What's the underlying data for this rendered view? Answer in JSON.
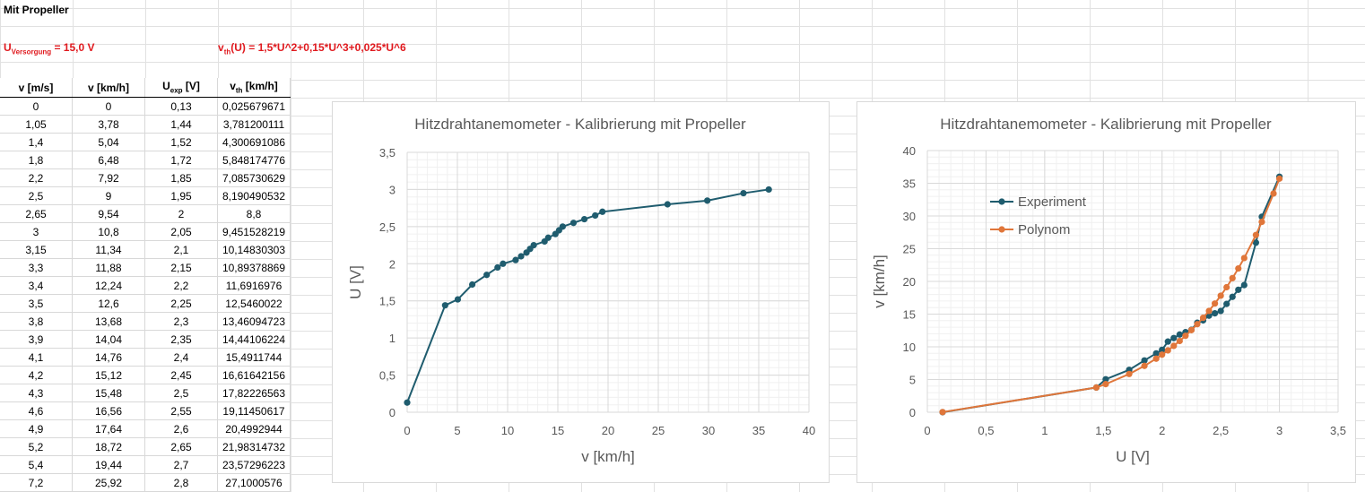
{
  "sheet": {
    "title": "Mit Propeller",
    "supply": {
      "sym": "U",
      "sub": "Versorgung",
      "rest": " = 15,0 V"
    },
    "formula": {
      "sym": "v",
      "sub": "th",
      "rest": "(U) = 1,5*U^2+0,15*U^3+0,025*U^6"
    },
    "headers": [
      {
        "main": "v [m/s]",
        "sub": "",
        "rest": ""
      },
      {
        "main": "v [km/h]",
        "sub": "",
        "rest": ""
      },
      {
        "main": "U",
        "sub": "exp",
        "rest": " [V]"
      },
      {
        "main": "v",
        "sub": "th",
        "rest": " [km/h]"
      }
    ],
    "rows": [
      [
        "0",
        "0",
        "0,13",
        "0,025679671"
      ],
      [
        "1,05",
        "3,78",
        "1,44",
        "3,781200111"
      ],
      [
        "1,4",
        "5,04",
        "1,52",
        "4,300691086"
      ],
      [
        "1,8",
        "6,48",
        "1,72",
        "5,848174776"
      ],
      [
        "2,2",
        "7,92",
        "1,85",
        "7,085730629"
      ],
      [
        "2,5",
        "9",
        "1,95",
        "8,190490532"
      ],
      [
        "2,65",
        "9,54",
        "2",
        "8,8"
      ],
      [
        "3",
        "10,8",
        "2,05",
        "9,451528219"
      ],
      [
        "3,15",
        "11,34",
        "2,1",
        "10,14830303"
      ],
      [
        "3,3",
        "11,88",
        "2,15",
        "10,89378869"
      ],
      [
        "3,4",
        "12,24",
        "2,2",
        "11,6916976"
      ],
      [
        "3,5",
        "12,6",
        "2,25",
        "12,5460022"
      ],
      [
        "3,8",
        "13,68",
        "2,3",
        "13,46094723"
      ],
      [
        "3,9",
        "14,04",
        "2,35",
        "14,44106224"
      ],
      [
        "4,1",
        "14,76",
        "2,4",
        "15,4911744"
      ],
      [
        "4,2",
        "15,12",
        "2,45",
        "16,61642156"
      ],
      [
        "4,3",
        "15,48",
        "2,5",
        "17,82226563"
      ],
      [
        "4,6",
        "16,56",
        "2,55",
        "19,11450617"
      ],
      [
        "4,9",
        "17,64",
        "2,6",
        "20,4992944"
      ],
      [
        "5,2",
        "18,72",
        "2,65",
        "21,98314732"
      ],
      [
        "5,4",
        "19,44",
        "2,7",
        "23,57296223"
      ],
      [
        "7,2",
        "25,92",
        "2,8",
        "27,1000576"
      ]
    ]
  },
  "chart_data": [
    {
      "type": "line",
      "title": "Hitzdrahtanemometer - Kalibrierung mit Propeller",
      "xlabel": "v [km/h]",
      "ylabel": "U [V]",
      "xlim": [
        0,
        40
      ],
      "ylim": [
        0,
        3.5
      ],
      "xticks": [
        "0",
        "5",
        "10",
        "15",
        "20",
        "25",
        "30",
        "35",
        "40"
      ],
      "yticks": [
        "0",
        "0,5",
        "1",
        "1,5",
        "2",
        "2,5",
        "3",
        "3,5"
      ],
      "grid": true,
      "series": [
        {
          "color": "#1f5c6e",
          "x": [
            0,
            3.78,
            5.04,
            6.48,
            7.92,
            9,
            9.54,
            10.8,
            11.34,
            11.88,
            12.24,
            12.6,
            13.68,
            14.04,
            14.76,
            15.12,
            15.48,
            16.56,
            17.64,
            18.72,
            19.44,
            25.92,
            29.88,
            33.48,
            36
          ],
          "y": [
            0.13,
            1.44,
            1.52,
            1.72,
            1.85,
            1.95,
            2,
            2.05,
            2.1,
            2.15,
            2.2,
            2.25,
            2.3,
            2.35,
            2.4,
            2.45,
            2.5,
            2.55,
            2.6,
            2.65,
            2.7,
            2.8,
            2.85,
            2.95,
            3
          ]
        }
      ]
    },
    {
      "type": "line",
      "title": "Hitzdrahtanemometer - Kalibrierung mit Propeller",
      "xlabel": "U [V]",
      "ylabel": "v [km/h]",
      "xlim": [
        0,
        3.5
      ],
      "ylim": [
        0,
        40
      ],
      "xticks": [
        "0",
        "0,5",
        "1",
        "1,5",
        "2",
        "2,5",
        "3",
        "3,5"
      ],
      "yticks": [
        "0",
        "5",
        "10",
        "15",
        "20",
        "25",
        "30",
        "35",
        "40"
      ],
      "grid": true,
      "legend": "left",
      "series": [
        {
          "name": "Experiment",
          "color": "#1f5c6e",
          "x": [
            0.13,
            1.44,
            1.52,
            1.72,
            1.85,
            1.95,
            2,
            2.05,
            2.1,
            2.15,
            2.2,
            2.25,
            2.3,
            2.35,
            2.4,
            2.45,
            2.5,
            2.55,
            2.6,
            2.65,
            2.7,
            2.8,
            2.85,
            3
          ],
          "y": [
            0,
            3.78,
            5.04,
            6.48,
            7.92,
            9,
            9.54,
            10.8,
            11.34,
            11.88,
            12.24,
            12.6,
            13.68,
            14.04,
            14.76,
            15.12,
            15.48,
            16.56,
            17.64,
            18.72,
            19.44,
            25.92,
            29.88,
            36
          ]
        },
        {
          "name": "Polynom",
          "color": "#e0763a",
          "x": [
            0.13,
            1.44,
            1.52,
            1.72,
            1.85,
            1.95,
            2,
            2.05,
            2.1,
            2.15,
            2.2,
            2.25,
            2.3,
            2.35,
            2.4,
            2.45,
            2.5,
            2.55,
            2.6,
            2.65,
            2.7,
            2.8,
            2.85,
            2.95,
            3
          ],
          "y": [
            0.026,
            3.78,
            4.3,
            5.85,
            7.09,
            8.19,
            8.8,
            9.45,
            10.15,
            10.89,
            11.69,
            12.55,
            13.46,
            14.44,
            15.49,
            16.62,
            17.82,
            19.11,
            20.5,
            21.98,
            23.57,
            27.1,
            29.1,
            33.43,
            35.7
          ]
        }
      ]
    }
  ]
}
